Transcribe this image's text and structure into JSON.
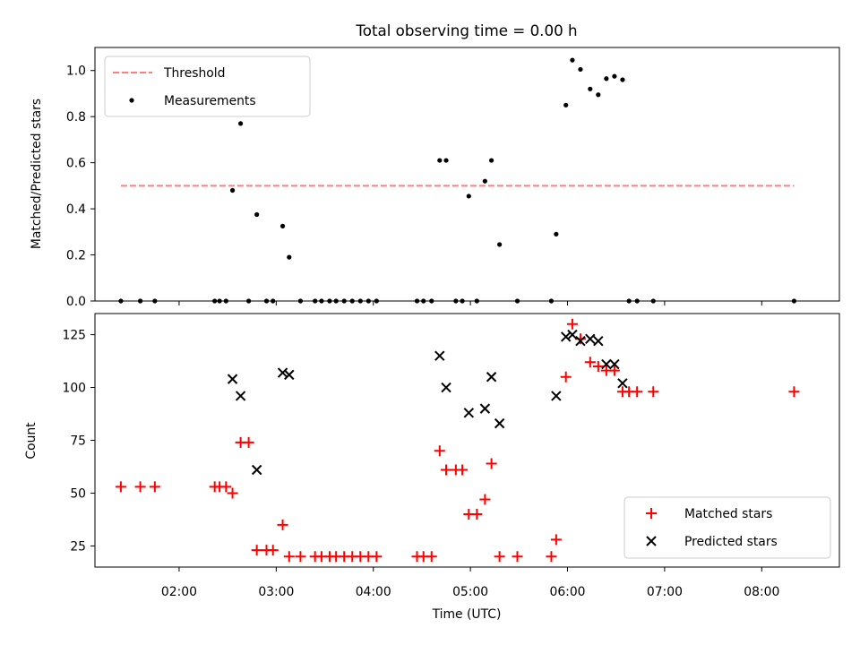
{
  "chart_data": [
    {
      "type": "scatter",
      "title": "Total observing time = 0.00 h",
      "ylabel": "Matched/Predicted stars",
      "xlabel": "",
      "x_unit": "hours UTC",
      "xlim": [
        "01:08",
        "08:48"
      ],
      "ylim": [
        0,
        1.1
      ],
      "yticks": [
        0.0,
        0.2,
        0.4,
        0.6,
        0.8,
        1.0
      ],
      "ytick_labels": [
        "0.0",
        "0.2",
        "0.4",
        "0.6",
        "0.8",
        "1.0"
      ],
      "legend_position": "upper-left",
      "grid": false,
      "threshold": {
        "name": "Threshold",
        "value": 0.5,
        "x_range": [
          "01:24",
          "08:20"
        ],
        "color": "#ff7f7f",
        "style": "dashed"
      },
      "series": [
        {
          "name": "Measurements",
          "color": "#000000",
          "marker": "dot",
          "x": [
            "01:24",
            "01:36",
            "01:45",
            "02:22",
            "02:25",
            "02:29",
            "02:33",
            "02:38",
            "02:43",
            "02:48",
            "02:54",
            "02:58",
            "03:04",
            "03:08",
            "03:15",
            "03:24",
            "03:28",
            "03:33",
            "03:37",
            "03:42",
            "03:47",
            "03:52",
            "03:57",
            "04:02",
            "04:27",
            "04:31",
            "04:36",
            "04:41",
            "04:45",
            "04:51",
            "04:55",
            "04:59",
            "05:04",
            "05:09",
            "05:13",
            "05:18",
            "05:29",
            "05:50",
            "05:53",
            "05:59",
            "06:03",
            "06:08",
            "06:14",
            "06:19",
            "06:24",
            "06:29",
            "06:34",
            "06:38",
            "06:43",
            "06:53",
            "08:20"
          ],
          "y": [
            0,
            0,
            0,
            0,
            0,
            0,
            0.48,
            0.77,
            0,
            0.375,
            0,
            0,
            0.325,
            0.19,
            0,
            0,
            0,
            0,
            0,
            0,
            0,
            0,
            0,
            0,
            0,
            0,
            0,
            0.61,
            0.61,
            0,
            0,
            0.455,
            0,
            0.52,
            0.61,
            0.245,
            0,
            0,
            0.29,
            0.85,
            1.045,
            1.005,
            0.92,
            0.895,
            0.965,
            0.975,
            0.96,
            0,
            0,
            0,
            0
          ]
        }
      ]
    },
    {
      "type": "scatter",
      "title": "",
      "ylabel": "Count",
      "xlabel": "Time (UTC)",
      "xlim": [
        "01:08",
        "08:48"
      ],
      "ylim": [
        15,
        135
      ],
      "xticks": [
        "02:00",
        "03:00",
        "04:00",
        "05:00",
        "06:00",
        "07:00",
        "08:00"
      ],
      "yticks": [
        25,
        50,
        75,
        100,
        125
      ],
      "ytick_labels": [
        "25",
        "50",
        "75",
        "100",
        "125"
      ],
      "legend_position": "lower-right",
      "grid": false,
      "series": [
        {
          "name": "Matched stars",
          "color": "#ff0000",
          "marker": "plus",
          "x": [
            "01:24",
            "01:36",
            "01:45",
            "02:22",
            "02:25",
            "02:29",
            "02:33",
            "02:38",
            "02:43",
            "02:48",
            "02:54",
            "02:58",
            "03:04",
            "03:08",
            "03:15",
            "03:24",
            "03:28",
            "03:33",
            "03:37",
            "03:42",
            "03:47",
            "03:52",
            "03:57",
            "04:02",
            "04:27",
            "04:31",
            "04:36",
            "04:41",
            "04:45",
            "04:51",
            "04:55",
            "04:59",
            "05:04",
            "05:09",
            "05:13",
            "05:18",
            "05:29",
            "05:50",
            "05:53",
            "05:59",
            "06:03",
            "06:08",
            "06:14",
            "06:19",
            "06:24",
            "06:29",
            "06:34",
            "06:38",
            "06:43",
            "06:53",
            "08:20"
          ],
          "y": [
            53,
            53,
            53,
            53,
            53,
            53,
            50,
            74,
            74,
            23,
            23,
            23,
            35,
            20,
            20,
            20,
            20,
            20,
            20,
            20,
            20,
            20,
            20,
            20,
            20,
            20,
            20,
            70,
            61,
            61,
            61,
            40,
            40,
            47,
            64,
            20,
            20,
            20,
            28,
            105,
            130,
            123,
            112,
            110,
            108,
            108,
            98,
            98,
            98,
            98,
            98
          ]
        },
        {
          "name": "Predicted stars",
          "color": "#000000",
          "marker": "x",
          "x": [
            "02:33",
            "02:38",
            "02:48",
            "03:04",
            "03:08",
            "04:41",
            "04:45",
            "04:59",
            "05:09",
            "05:13",
            "05:18",
            "05:53",
            "05:59",
            "06:03",
            "06:08",
            "06:14",
            "06:19",
            "06:24",
            "06:29",
            "06:34"
          ],
          "y": [
            104,
            96,
            61,
            107,
            106,
            115,
            100,
            88,
            90,
            105,
            83,
            96,
            124,
            125,
            122,
            123,
            122,
            111,
            111,
            102
          ]
        }
      ]
    }
  ]
}
